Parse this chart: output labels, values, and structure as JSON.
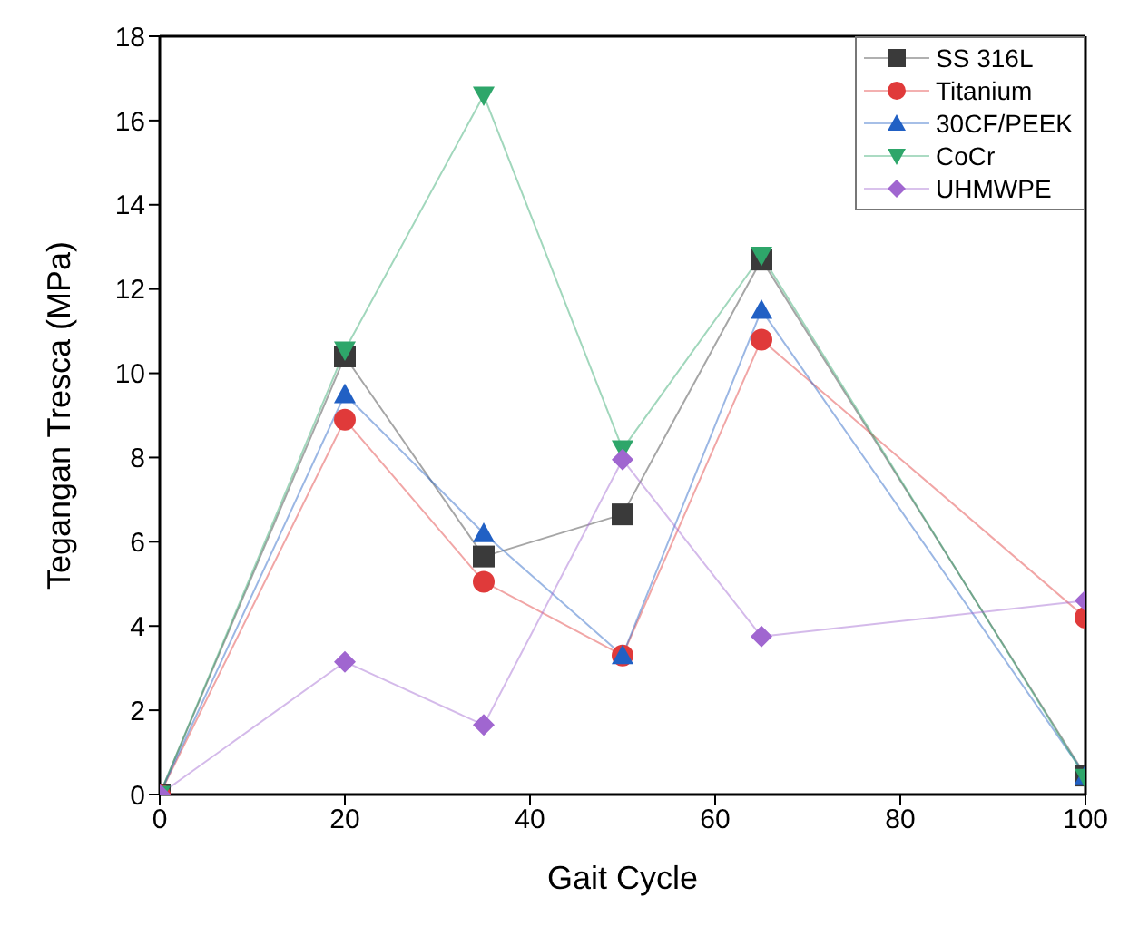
{
  "chart_data": {
    "type": "line",
    "xlabel": "Gait Cycle",
    "ylabel": "Tegangan Tresca (MPa)",
    "x": [
      0,
      20,
      35,
      50,
      65,
      100
    ],
    "xlim": [
      0,
      100
    ],
    "xticks": [
      0,
      20,
      40,
      60,
      80,
      100
    ],
    "ylim": [
      0,
      18
    ],
    "yticks": [
      0,
      2,
      4,
      6,
      8,
      10,
      12,
      14,
      16,
      18
    ],
    "legend": "top right",
    "series": [
      {
        "name": "SS 316L",
        "color": "#3a3a3a",
        "marker": "square",
        "values": [
          0,
          10.4,
          5.65,
          6.65,
          12.7,
          0.45
        ]
      },
      {
        "name": "Titanium",
        "color": "#e03a3a",
        "marker": "circle",
        "values": [
          0,
          8.9,
          5.05,
          3.3,
          10.8,
          4.2
        ]
      },
      {
        "name": "30CF/PEEK",
        "color": "#2160c4",
        "marker": "triangle",
        "values": [
          0,
          9.5,
          6.2,
          3.3,
          11.5,
          0.45
        ]
      },
      {
        "name": "CoCr",
        "color": "#2ea66a",
        "marker": "triangle-down",
        "values": [
          0,
          10.55,
          16.6,
          8.2,
          12.8,
          0.4
        ]
      },
      {
        "name": "UHMWPE",
        "color": "#a066d0",
        "marker": "diamond",
        "values": [
          0,
          3.15,
          1.65,
          7.95,
          3.75,
          4.6
        ]
      }
    ]
  }
}
